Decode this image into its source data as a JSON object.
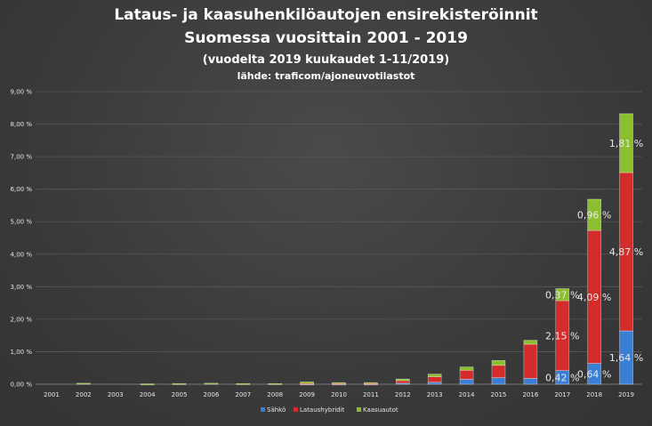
{
  "chart_data": {
    "type": "bar",
    "stacked": true,
    "title": "Lataus- ja kaasuhenkilöautojen ensirekisteröinnit",
    "subtitle": "Suomessa vuosittain 2001 - 2019",
    "note": "(vuodelta 2019 kuukaudet 1-11/2019)",
    "source": "lähde: traficom/ajoneuvotilastot",
    "categories": [
      "2001",
      "2002",
      "2003",
      "2004",
      "2005",
      "2006",
      "2007",
      "2008",
      "2009",
      "2010",
      "2011",
      "2012",
      "2013",
      "2014",
      "2015",
      "2016",
      "2017",
      "2018",
      "2019"
    ],
    "ylim": [
      0,
      9
    ],
    "yticks": [
      "0,00 %",
      "1,00 %",
      "2,00 %",
      "3,00 %",
      "4,00 %",
      "5,00 %",
      "6,00 %",
      "7,00 %",
      "8,00 %",
      "9,00 %"
    ],
    "grid": true,
    "legend_position": "bottom",
    "series": [
      {
        "name": "Sähkö",
        "color": "#3a7fd5",
        "values": [
          0,
          0,
          0,
          0,
          0,
          0,
          0,
          0,
          0.01,
          0.01,
          0.01,
          0.03,
          0.06,
          0.15,
          0.2,
          0.18,
          0.42,
          0.64,
          1.64
        ],
        "labels": [
          "",
          "",
          "",
          "",
          "",
          "",
          "",
          "",
          "",
          "",
          "",
          "",
          "",
          "",
          "",
          "",
          "0,42 %",
          "0,64 %",
          "1,64 %"
        ]
      },
      {
        "name": "Lataushybridit",
        "color": "#d42b2b",
        "values": [
          0,
          0,
          0,
          0,
          0,
          0,
          0,
          0,
          0.01,
          0.01,
          0.01,
          0.08,
          0.17,
          0.28,
          0.38,
          1.05,
          2.15,
          4.09,
          4.87
        ],
        "labels": [
          "",
          "",
          "",
          "",
          "",
          "",
          "",
          "",
          "",
          "",
          "",
          "",
          "",
          "",
          "",
          "",
          "2,15 %",
          "4,09 %",
          "4,87 %"
        ]
      },
      {
        "name": "Kaasuautot",
        "color": "#8cbf2e",
        "values": [
          0,
          0.03,
          0,
          0.01,
          0.02,
          0.03,
          0.02,
          0.02,
          0.05,
          0.03,
          0.03,
          0.05,
          0.08,
          0.1,
          0.15,
          0.12,
          0.37,
          0.96,
          1.81
        ],
        "labels": [
          "",
          "",
          "",
          "",
          "",
          "",
          "",
          "",
          "",
          "",
          "",
          "",
          "",
          "",
          "",
          "",
          "0,37 %",
          "0,96 %",
          "1,81 %"
        ]
      }
    ]
  }
}
